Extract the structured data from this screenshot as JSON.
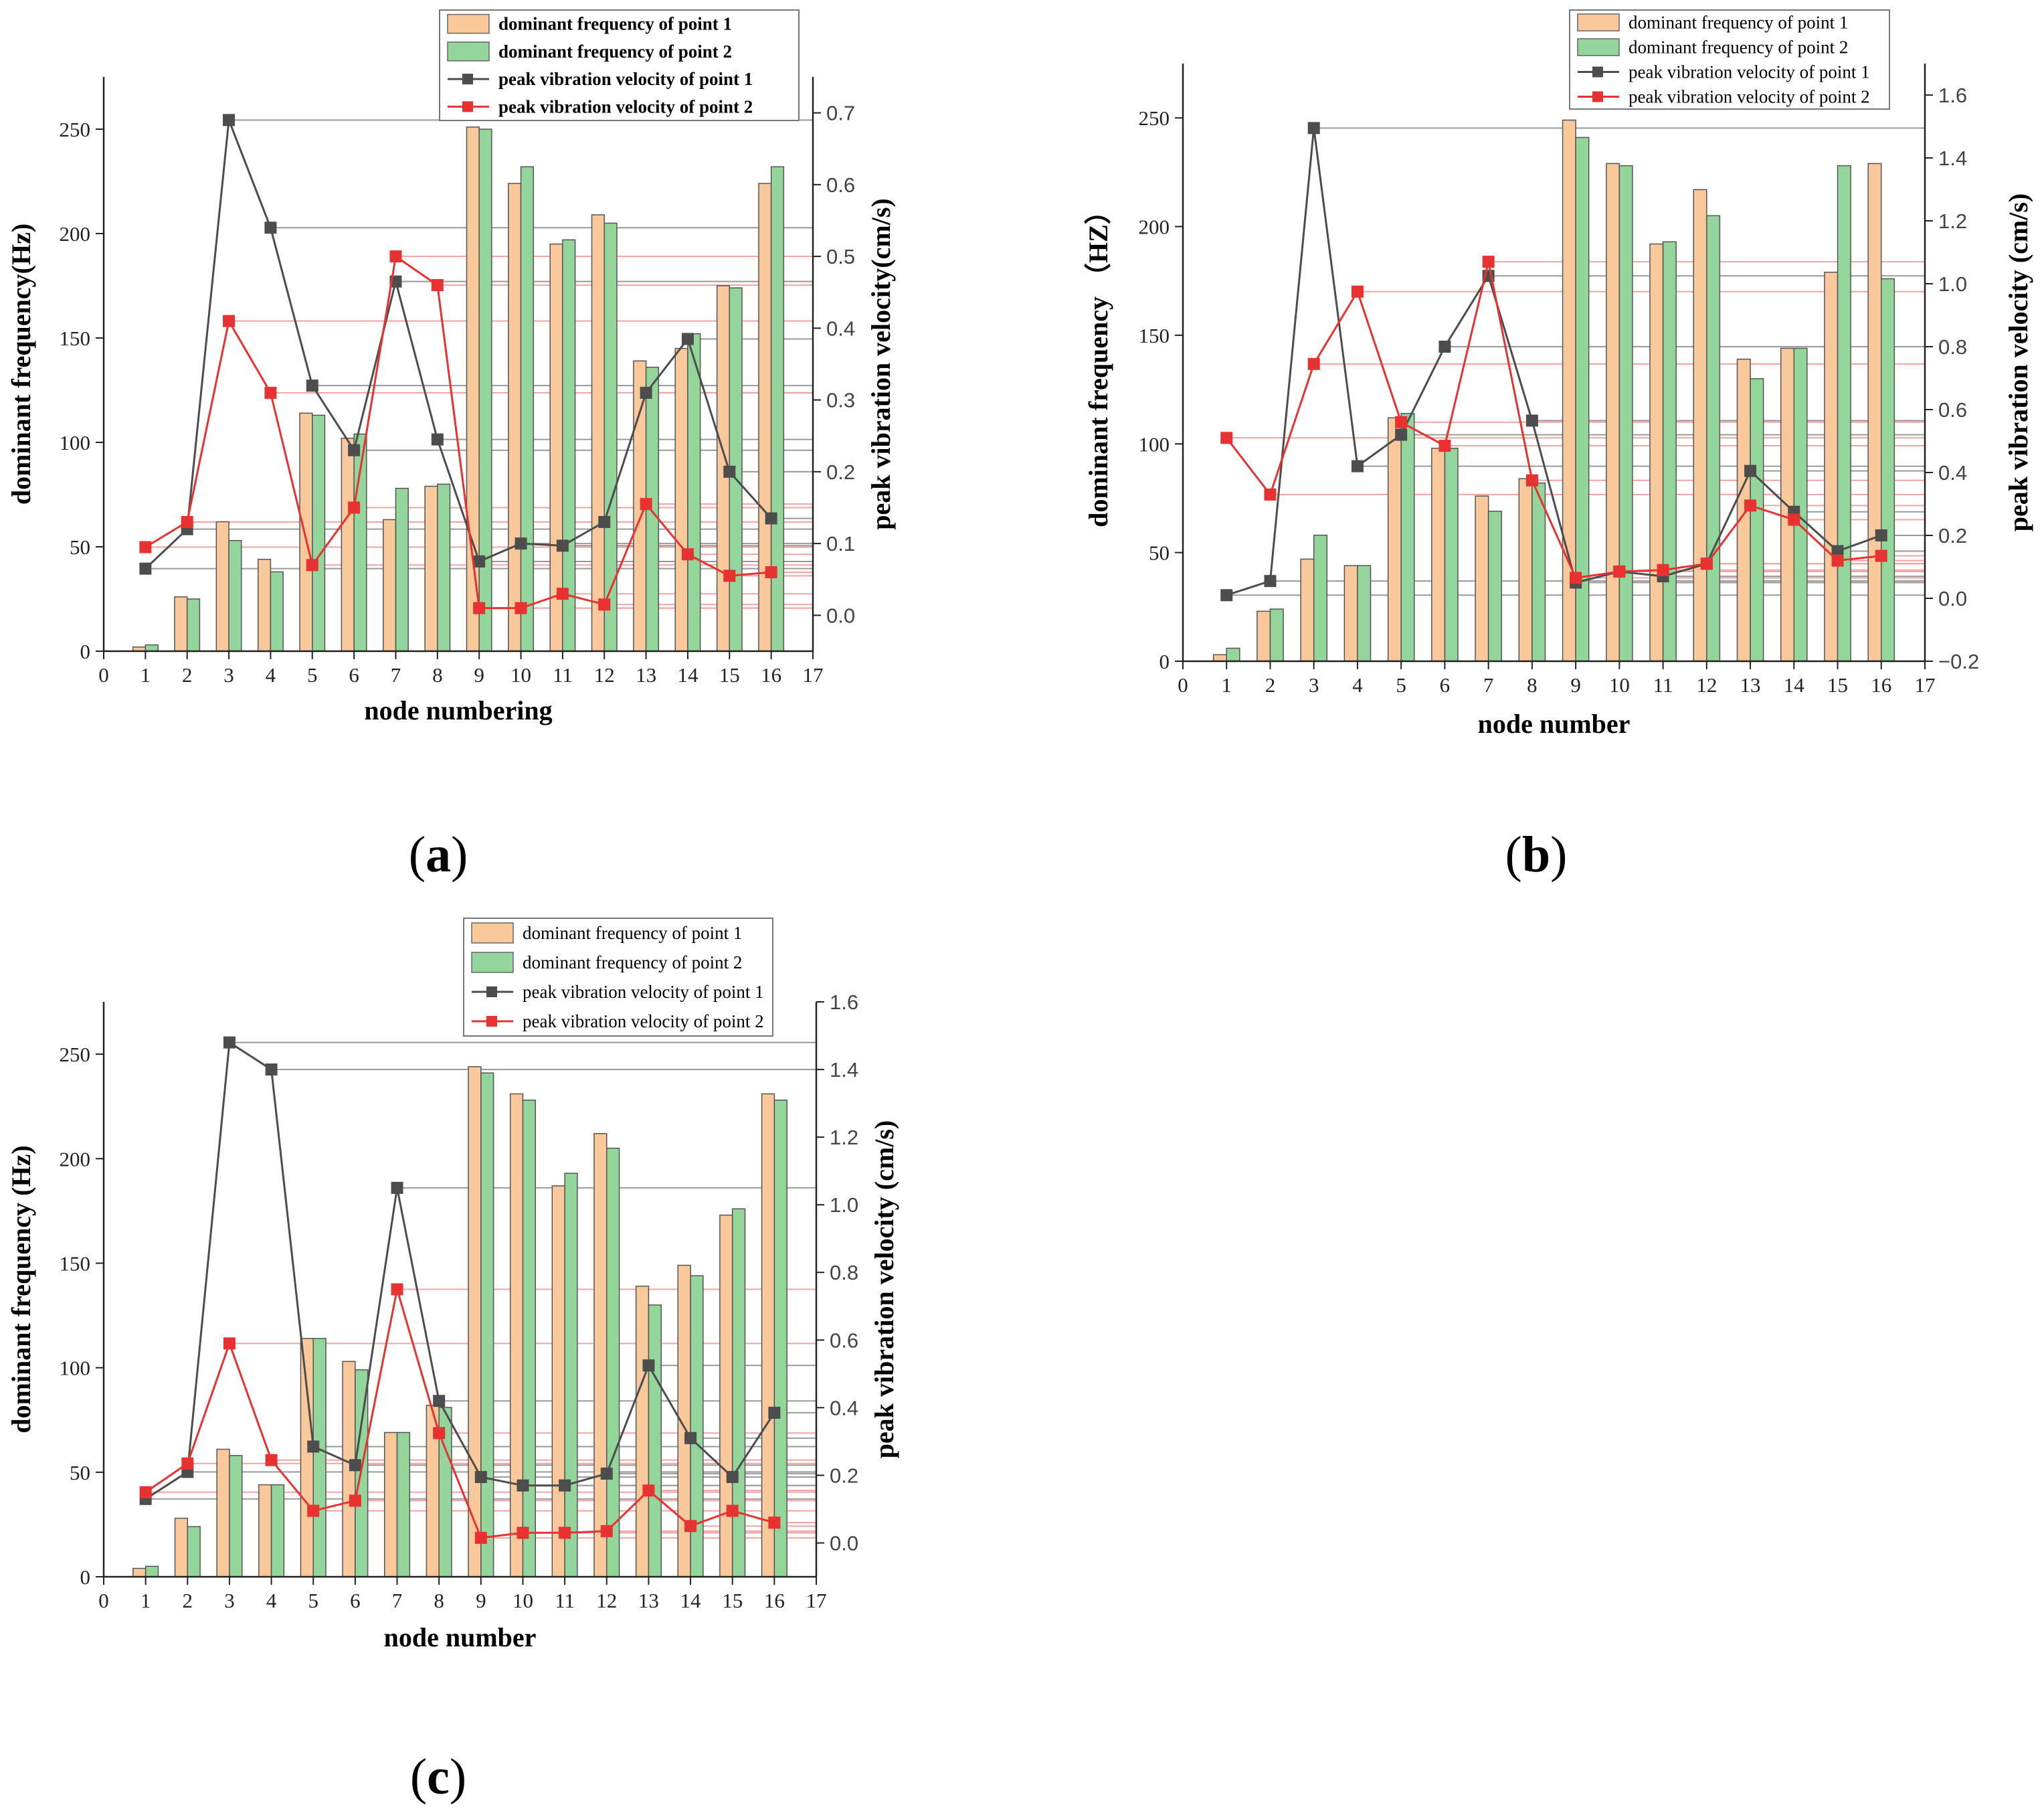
{
  "figure": {
    "panels_text": [
      "(a)",
      "(b)",
      "(c)"
    ]
  },
  "chart_data": [
    {
      "panel": "(a)",
      "type": "bar",
      "title": "",
      "xlabel": "node numbering",
      "ylabel": "dominant frequency(Hz)",
      "y2label": "peak  vibration velocity(cm/s)",
      "categories": [
        1,
        2,
        3,
        4,
        5,
        6,
        7,
        8,
        9,
        10,
        11,
        12,
        13,
        14,
        15,
        16
      ],
      "x_ticks": [
        0,
        1,
        2,
        3,
        4,
        5,
        6,
        7,
        8,
        9,
        10,
        11,
        12,
        13,
        14,
        15,
        16,
        17
      ],
      "xlim": [
        0,
        17
      ],
      "ylim": [
        0,
        275
      ],
      "y_ticks": [
        0,
        50,
        100,
        150,
        200,
        250
      ],
      "y2lim": [
        -0.05,
        0.75
      ],
      "y2_ticks": [
        0.0,
        0.1,
        0.2,
        0.3,
        0.4,
        0.5,
        0.6,
        0.7
      ],
      "y2_tick_labels": [
        "0.0",
        "0.1",
        "0.2",
        "0.3",
        "0.4",
        "0.5",
        "0.6",
        "0.7"
      ],
      "legend_bold": true,
      "series": [
        {
          "name": "dominant frequency of point 1",
          "kind": "bar",
          "axis": "left",
          "color": "#F9C89B",
          "values": [
            2,
            26,
            62,
            44,
            114,
            102,
            63,
            79,
            251,
            224,
            195,
            209,
            139,
            145,
            175,
            224
          ]
        },
        {
          "name": "dominant frequency of point 2",
          "kind": "bar",
          "axis": "left",
          "color": "#93D59A",
          "values": [
            3,
            25,
            53,
            38,
            113,
            104,
            78,
            80,
            250,
            232,
            197,
            205,
            136,
            152,
            174,
            232
          ]
        },
        {
          "name": "peak  vibration velocity of point 1",
          "kind": "line",
          "axis": "right",
          "color": "#4D4D4D",
          "values": [
            0.065,
            0.12,
            0.69,
            0.54,
            0.32,
            0.23,
            0.465,
            0.245,
            0.075,
            0.1,
            0.097,
            0.13,
            0.31,
            0.385,
            0.2,
            0.135
          ]
        },
        {
          "name": "peak  vibration velocity of point 2",
          "kind": "line",
          "axis": "right",
          "color": "#E83232",
          "values": [
            0.095,
            0.13,
            0.41,
            0.31,
            0.07,
            0.15,
            0.5,
            0.46,
            0.01,
            0.01,
            0.03,
            0.015,
            0.155,
            0.085,
            0.055,
            0.06
          ]
        }
      ]
    },
    {
      "panel": "(b)",
      "type": "bar",
      "title": "",
      "xlabel": "node number",
      "ylabel": "dominant frequency （HZ）",
      "y2label": "peak vibration velocity (cm/s)",
      "categories": [
        1,
        2,
        3,
        4,
        5,
        6,
        7,
        8,
        9,
        10,
        11,
        12,
        13,
        14,
        15,
        16
      ],
      "x_ticks": [
        0,
        1,
        2,
        3,
        4,
        5,
        6,
        7,
        8,
        9,
        10,
        11,
        12,
        13,
        14,
        15,
        16,
        17
      ],
      "xlim": [
        0,
        17
      ],
      "ylim": [
        0,
        275
      ],
      "y_ticks": [
        0,
        50,
        100,
        150,
        200,
        250
      ],
      "y2lim": [
        -0.2,
        1.7
      ],
      "y2_ticks": [
        -0.2,
        0.0,
        0.2,
        0.4,
        0.6,
        0.8,
        1.0,
        1.2,
        1.4,
        1.6
      ],
      "y2_tick_labels": [
        "−0.2",
        "0.0",
        "0.2",
        "0.4",
        "0.6",
        "0.8",
        "1.0",
        "1.2",
        "1.4",
        "1.6"
      ],
      "legend_bold": false,
      "series": [
        {
          "name": "dominant frequency of point 1",
          "kind": "bar",
          "axis": "left",
          "color": "#F9C89B",
          "values": [
            3,
            23,
            47,
            44,
            112,
            98,
            76,
            84,
            249,
            229,
            192,
            217,
            139,
            144,
            179,
            229
          ]
        },
        {
          "name": "dominant frequency of point 2",
          "kind": "bar",
          "axis": "left",
          "color": "#93D59A",
          "values": [
            6,
            24,
            58,
            44,
            114,
            98,
            69,
            82,
            241,
            228,
            193,
            205,
            130,
            144,
            228,
            176
          ]
        },
        {
          "name": "peak vibration velocity of point 1",
          "kind": "line",
          "axis": "right",
          "color": "#4D4D4D",
          "values": [
            0.01,
            0.055,
            1.495,
            0.42,
            0.52,
            0.8,
            1.025,
            0.565,
            0.05,
            0.085,
            0.07,
            0.11,
            0.405,
            0.275,
            0.15,
            0.2
          ]
        },
        {
          "name": "peak vibration velocity of point 2",
          "kind": "line",
          "axis": "right",
          "color": "#E83232",
          "values": [
            0.51,
            0.33,
            0.745,
            0.975,
            0.56,
            0.485,
            1.07,
            0.375,
            0.065,
            0.085,
            0.09,
            0.11,
            0.295,
            0.25,
            0.12,
            0.135
          ]
        }
      ]
    },
    {
      "panel": "(c)",
      "type": "bar",
      "title": "",
      "xlabel": "node number",
      "ylabel": "dominant frequency (Hz)",
      "y2label": "peak vibration velocity (cm/s)",
      "categories": [
        1,
        2,
        3,
        4,
        5,
        6,
        7,
        8,
        9,
        10,
        11,
        12,
        13,
        14,
        15,
        16
      ],
      "x_ticks": [
        0,
        1,
        2,
        3,
        4,
        5,
        6,
        7,
        8,
        9,
        10,
        11,
        12,
        13,
        14,
        15,
        16,
        17
      ],
      "xlim": [
        0,
        17
      ],
      "ylim": [
        0,
        275
      ],
      "y_ticks": [
        0,
        50,
        100,
        150,
        200,
        250
      ],
      "y2lim": [
        -0.1,
        1.6
      ],
      "y2_ticks": [
        0.0,
        0.2,
        0.4,
        0.6,
        0.8,
        1.0,
        1.2,
        1.4,
        1.6
      ],
      "y2_tick_labels": [
        "0.0",
        "0.2",
        "0.4",
        "0.6",
        "0.8",
        "1.0",
        "1.2",
        "1.4",
        "1.6"
      ],
      "legend_bold": false,
      "series": [
        {
          "name": "dominant frequency of point 1",
          "kind": "bar",
          "axis": "left",
          "color": "#F9C89B",
          "values": [
            4,
            28,
            61,
            44,
            114,
            103,
            69,
            82,
            244,
            231,
            187,
            212,
            139,
            149,
            173,
            231
          ]
        },
        {
          "name": "dominant frequency of point 2",
          "kind": "bar",
          "axis": "left",
          "color": "#93D59A",
          "values": [
            5,
            24,
            58,
            44,
            114,
            99,
            69,
            81,
            241,
            228,
            193,
            205,
            130,
            144,
            176,
            228
          ]
        },
        {
          "name": "peak vibration velocity of point 1",
          "kind": "line",
          "axis": "right",
          "color": "#4D4D4D",
          "values": [
            0.13,
            0.21,
            1.48,
            1.4,
            0.285,
            0.23,
            1.05,
            0.42,
            0.195,
            0.17,
            0.17,
            0.205,
            0.525,
            0.31,
            0.195,
            0.385
          ]
        },
        {
          "name": "peak vibration velocity of point 2",
          "kind": "line",
          "axis": "right",
          "color": "#E83232",
          "values": [
            0.15,
            0.235,
            0.59,
            0.245,
            0.095,
            0.125,
            0.75,
            0.325,
            0.015,
            0.03,
            0.03,
            0.035,
            0.155,
            0.05,
            0.095,
            0.06
          ]
        }
      ]
    }
  ]
}
